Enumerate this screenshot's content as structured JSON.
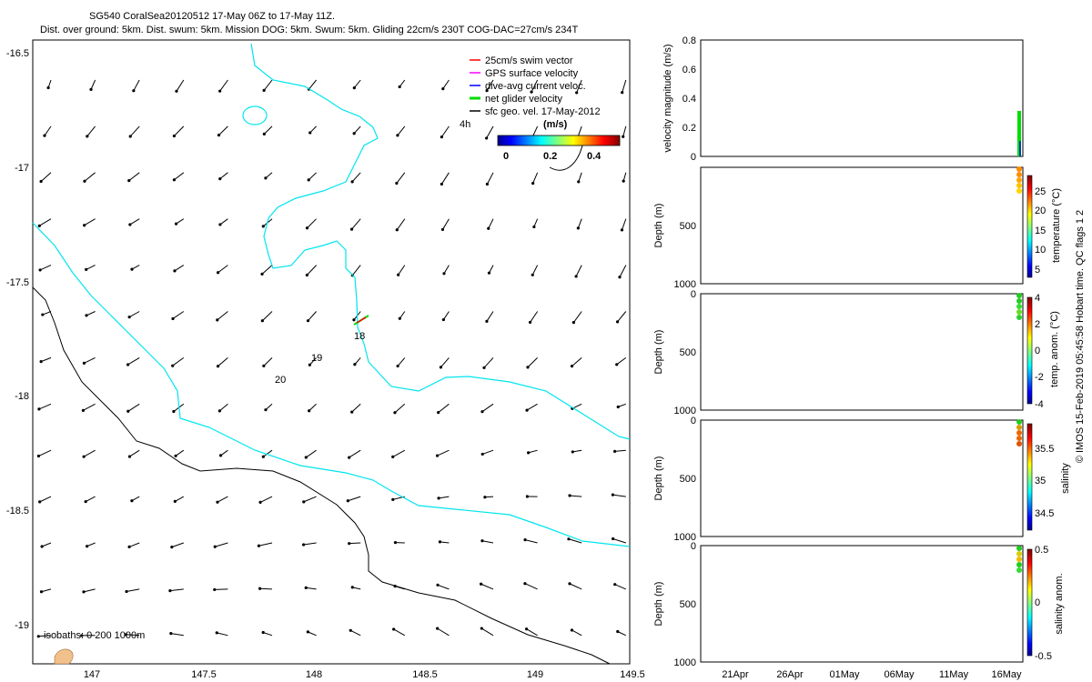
{
  "title_line1": "SG540 CoralSea20120512 17-May 06Z to 17-May 11Z.",
  "title_line2": "Dist. over ground: 5km. Dist. swum: 5km. Mission DOG: 5km. Swum: 5km. Gliding 22cm/s 230T COG-DAC=27cm/s 234T",
  "credit": "© IMOS 15-Feb-2019 05:45:58 Hobart time. QC flags 1  2",
  "colors": {
    "swim": "#ff0000",
    "gps": "#ff00ff",
    "dac": "#0000ff",
    "net": "#00dd00",
    "geo": "#000000",
    "coast200": "#00e5ee",
    "coast1000": "#000000"
  },
  "map": {
    "type": "quiver",
    "xlim": [
      146.7,
      149.57
    ],
    "ylim": [
      -19.15,
      -16.45
    ],
    "xticks": [
      "147",
      "147.5",
      "148",
      "148.5",
      "149",
      "149.5"
    ],
    "yticks": [
      "-16.5",
      "-17",
      "-17.5",
      "-18",
      "-18.5",
      "-19"
    ],
    "legend": [
      {
        "label": "25cm/s swim vector",
        "color": "#ff0000"
      },
      {
        "label": "GPS surface velocity",
        "color": "#ff00ff"
      },
      {
        "label": "dive-avg current veloc.",
        "color": "#0000ff"
      },
      {
        "label": "net glider velocity",
        "color": "#00dd00"
      },
      {
        "label": "sfc geo. vel. 17-May-2012",
        "color": "#000000"
      }
    ],
    "colorbar": {
      "units": "(m/s)",
      "ticks": [
        "0",
        "0.2",
        "0.4"
      ],
      "range": [
        0,
        0.5
      ]
    },
    "isobaths_label": "isobaths: 0   200  1000m",
    "annotations": [
      {
        "text": "4h",
        "lon": 148.72,
        "lat": -16.82
      },
      {
        "text": "18",
        "lon": 148.21,
        "lat": -17.73
      },
      {
        "text": "19",
        "lon": 148.02,
        "lat": -17.84
      },
      {
        "text": "20",
        "lon": 147.85,
        "lat": -17.92
      }
    ],
    "glider_track": {
      "lon": [
        148.19,
        148.26
      ],
      "lat": [
        -17.69,
        -17.64
      ]
    }
  },
  "timeseries": {
    "xticks": [
      "21Apr",
      "26Apr",
      "01May",
      "06May",
      "11May",
      "16May"
    ],
    "velocity": {
      "ylabel": "velocity magnitude (m/s)",
      "ylim": [
        0,
        0.8
      ],
      "yticks": [
        "0",
        "0.2",
        "0.4",
        "0.6",
        "0.8"
      ]
    },
    "depth_panels": [
      {
        "ylabel": "Depth (m)",
        "cblabel": "temperature (°C)",
        "cbticks": [
          "5",
          "10",
          "15",
          "20",
          "25"
        ],
        "cbrange": [
          3,
          29
        ]
      },
      {
        "ylabel": "Depth (m)",
        "cblabel": "temp. anom. (°C)",
        "cbticks": [
          "-4",
          "-2",
          "0",
          "2",
          "4"
        ],
        "cbrange": [
          -4,
          4
        ]
      },
      {
        "ylabel": "Depth (m)",
        "cblabel": "salinity",
        "cbticks": [
          "34.5",
          "35",
          "35.5"
        ],
        "cbrange": [
          34.3,
          35.8
        ]
      },
      {
        "ylabel": "Depth (m)",
        "cblabel": "salinity anom.",
        "cbticks": [
          "-0.5",
          "0",
          "0.5"
        ],
        "cbrange": [
          -0.5,
          0.5
        ]
      }
    ],
    "depth_ticks": [
      "0",
      "500",
      "1000"
    ]
  }
}
